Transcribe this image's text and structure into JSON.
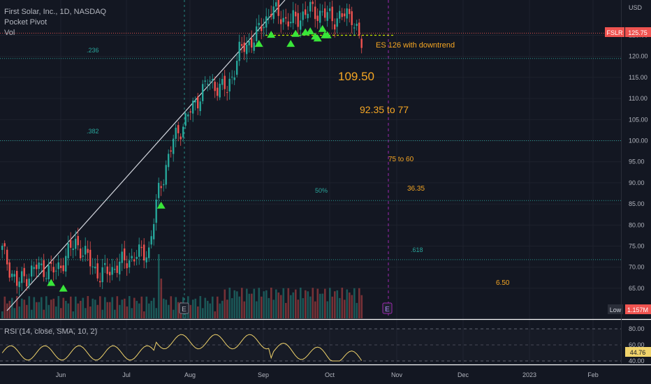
{
  "header": {
    "symbol_line": "First Solar, Inc., 1D, NASDAQ",
    "indicator_1": "Pocket Pivot",
    "indicator_2": "Vol"
  },
  "rsi": {
    "label": "RSI (14, close, SMA, 10, 2)"
  },
  "chart_data": {
    "type": "candlestick",
    "title": "First Solar, Inc., 1D, NASDAQ",
    "currency": "USD",
    "x_tick_labels": [
      "Jun",
      "Jul",
      "Aug",
      "Sep",
      "Oct",
      "Nov",
      "Dec",
      "2023",
      "Feb"
    ],
    "price_axis": {
      "ticks": [
        65.0,
        70.0,
        75.0,
        80.0,
        85.0,
        90.0,
        95.0,
        100.0,
        105.0,
        110.0,
        115.0,
        120.0,
        125.0
      ],
      "range": [
        62,
        131
      ],
      "unit_label": "USD"
    },
    "last_price": {
      "symbol": "FSLR",
      "value": "125.75"
    },
    "volume_badge": {
      "label": "Low",
      "value": "1.157M"
    },
    "rsi_axis": {
      "ticks": [
        80.0,
        60.0,
        40.0
      ],
      "current": "44.76"
    },
    "horizontal_levels": [
      {
        "price": 125.5,
        "style": "red-dotted"
      },
      {
        "price": 119.5,
        "style": "teal-dotted"
      },
      {
        "price": 100.0,
        "style": "teal-dotted"
      },
      {
        "price": 85.8,
        "style": "teal-dotted"
      },
      {
        "price": 71.8,
        "style": "teal-dotted"
      }
    ],
    "annotations": [
      {
        "text": ".236",
        "price": 121.1,
        "color": "teal"
      },
      {
        "text": ".382",
        "price": 104.2,
        "color": "teal"
      },
      {
        "text": "50%",
        "price": 88.1,
        "color": "teal"
      },
      {
        "text": ".618",
        "price": 74.5,
        "color": "teal"
      },
      {
        "text": "ES 126 with downtrend",
        "price": 122.3,
        "color": "orange"
      },
      {
        "text": "109.50",
        "price": 115.7,
        "color": "orange"
      },
      {
        "text": "92.35 to 77",
        "price": 110.4,
        "color": "orange"
      },
      {
        "text": "75 to 60",
        "price": 94.2,
        "color": "orange"
      },
      {
        "text": "36.35",
        "price": 87.4,
        "color": "orange"
      },
      {
        "text": "6.50",
        "price": 68.2,
        "color": "orange"
      }
    ],
    "pocket_pivot_count": 14,
    "earnings_markers": [
      "E",
      "E"
    ],
    "colors": {
      "background": "#131722",
      "up": "#26a69a",
      "down": "#ef5350",
      "teal_level": "#2aa69c",
      "orange_text": "#f5a623",
      "marker": "#39e639",
      "rsi_line": "#f0d36b",
      "earnings": "#9c27b0"
    }
  }
}
